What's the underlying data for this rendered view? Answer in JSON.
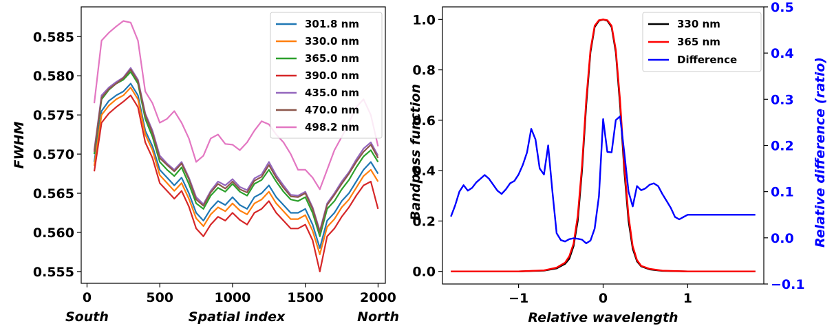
{
  "chart_data": [
    {
      "type": "line",
      "title": "",
      "xlabel": "Spatial index",
      "ylabel": "FWHM",
      "x_end_labels": {
        "left": "South",
        "right": "North"
      },
      "xlim": [
        -40,
        2050
      ],
      "ylim": [
        0.5535,
        0.5888
      ],
      "xticks": [
        0,
        500,
        1000,
        1500,
        2000
      ],
      "yticks": [
        0.555,
        0.56,
        0.565,
        0.57,
        0.575,
        0.58,
        0.585
      ],
      "ytick_labels": [
        "0.555",
        "0.560",
        "0.565",
        "0.570",
        "0.575",
        "0.580",
        "0.585"
      ],
      "legend_position": "top-right",
      "x": [
        50,
        100,
        150,
        200,
        250,
        300,
        350,
        400,
        450,
        500,
        550,
        600,
        650,
        700,
        750,
        800,
        850,
        900,
        950,
        1000,
        1050,
        1100,
        1150,
        1200,
        1250,
        1300,
        1350,
        1400,
        1450,
        1500,
        1550,
        1600,
        1650,
        1700,
        1750,
        1800,
        1850,
        1900,
        1950,
        2000
      ],
      "series": [
        {
          "name": "301.8 nm",
          "color": "#1f77b4",
          "values": [
            0.569,
            0.5755,
            0.5768,
            0.5775,
            0.578,
            0.579,
            0.5775,
            0.573,
            0.571,
            0.568,
            0.567,
            0.566,
            0.567,
            0.565,
            0.5625,
            0.5615,
            0.563,
            0.564,
            0.5635,
            0.5645,
            0.5635,
            0.563,
            0.5645,
            0.565,
            0.566,
            0.5645,
            0.5635,
            0.5625,
            0.5625,
            0.563,
            0.561,
            0.558,
            0.5615,
            0.5625,
            0.564,
            0.565,
            0.5665,
            0.568,
            0.569,
            0.5675
          ]
        },
        {
          "name": "330.0 nm",
          "color": "#ff7f0e",
          "values": [
            0.5685,
            0.575,
            0.5762,
            0.577,
            0.5775,
            0.5785,
            0.577,
            0.5725,
            0.5705,
            0.5673,
            0.5663,
            0.5653,
            0.5663,
            0.5643,
            0.5618,
            0.5608,
            0.5623,
            0.5632,
            0.5627,
            0.5637,
            0.5628,
            0.5623,
            0.5637,
            0.5642,
            0.5652,
            0.5637,
            0.5627,
            0.5617,
            0.5617,
            0.5622,
            0.5602,
            0.5572,
            0.5607,
            0.5617,
            0.5632,
            0.5642,
            0.5657,
            0.5672,
            0.568,
            0.5665
          ]
        },
        {
          "name": "365.0 nm",
          "color": "#2ca02c",
          "values": [
            0.57,
            0.577,
            0.5782,
            0.579,
            0.5795,
            0.5805,
            0.579,
            0.5745,
            0.5722,
            0.569,
            0.568,
            0.5672,
            0.5683,
            0.5662,
            0.5637,
            0.563,
            0.5647,
            0.5657,
            0.5652,
            0.5662,
            0.5652,
            0.5647,
            0.5662,
            0.5667,
            0.568,
            0.5665,
            0.5652,
            0.5642,
            0.564,
            0.5645,
            0.5625,
            0.5595,
            0.563,
            0.564,
            0.5655,
            0.5667,
            0.5683,
            0.5697,
            0.5705,
            0.569
          ]
        },
        {
          "name": "390.0 nm",
          "color": "#d62728",
          "values": [
            0.5678,
            0.574,
            0.5752,
            0.576,
            0.5767,
            0.5775,
            0.576,
            0.5715,
            0.5695,
            0.5663,
            0.5653,
            0.5643,
            0.5653,
            0.5633,
            0.5605,
            0.5595,
            0.561,
            0.562,
            0.5615,
            0.5625,
            0.5616,
            0.561,
            0.5625,
            0.563,
            0.564,
            0.5625,
            0.5615,
            0.5605,
            0.5605,
            0.561,
            0.559,
            0.555,
            0.5595,
            0.5605,
            0.562,
            0.5632,
            0.5647,
            0.566,
            0.5665,
            0.563
          ]
        },
        {
          "name": "435.0 nm",
          "color": "#9467bd",
          "values": [
            0.5705,
            0.5775,
            0.5785,
            0.5792,
            0.5798,
            0.581,
            0.5795,
            0.5752,
            0.573,
            0.5698,
            0.5688,
            0.568,
            0.569,
            0.567,
            0.5645,
            0.5636,
            0.5653,
            0.5665,
            0.566,
            0.5668,
            0.5658,
            0.5654,
            0.5669,
            0.5674,
            0.569,
            0.5673,
            0.566,
            0.5648,
            0.5647,
            0.5652,
            0.5632,
            0.5602,
            0.5637,
            0.565,
            0.5665,
            0.5677,
            0.5693,
            0.5707,
            0.5715,
            0.5698
          ]
        },
        {
          "name": "470.0 nm",
          "color": "#8c564b",
          "values": [
            0.5703,
            0.5772,
            0.5783,
            0.579,
            0.5797,
            0.5808,
            0.5793,
            0.575,
            0.5727,
            0.5695,
            0.5686,
            0.5678,
            0.5688,
            0.5668,
            0.5642,
            0.5634,
            0.5651,
            0.5662,
            0.5656,
            0.5665,
            0.5655,
            0.5651,
            0.5666,
            0.5671,
            0.5686,
            0.567,
            0.5657,
            0.5646,
            0.5645,
            0.565,
            0.563,
            0.56,
            0.5635,
            0.5648,
            0.5662,
            0.5675,
            0.569,
            0.5703,
            0.5712,
            0.5695
          ]
        },
        {
          "name": "498.2 nm",
          "color": "#e377c2",
          "values": [
            0.5765,
            0.5845,
            0.5855,
            0.5863,
            0.587,
            0.5868,
            0.5845,
            0.578,
            0.5765,
            0.574,
            0.5745,
            0.5755,
            0.574,
            0.572,
            0.569,
            0.5698,
            0.572,
            0.5725,
            0.5713,
            0.5712,
            0.5705,
            0.5715,
            0.573,
            0.5742,
            0.5738,
            0.5725,
            0.5715,
            0.57,
            0.568,
            0.568,
            0.567,
            0.5655,
            0.568,
            0.5705,
            0.5722,
            0.574,
            0.576,
            0.577,
            0.575,
            0.571
          ]
        }
      ]
    },
    {
      "type": "line",
      "title": "",
      "xlabel": "Relative wavelength",
      "ylabel": "Bandpass function",
      "y2label": "Relative difference (ratio)",
      "xlim": [
        -1.9,
        1.9
      ],
      "ylim": [
        -0.05,
        1.05
      ],
      "y2lim": [
        -0.1,
        0.5
      ],
      "xticks": [
        -1,
        0,
        1
      ],
      "xtick_labels": [
        "−1",
        "0",
        "1"
      ],
      "yticks": [
        0.0,
        0.2,
        0.4,
        0.6,
        0.8,
        1.0
      ],
      "ytick_labels": [
        "0.0",
        "0.2",
        "0.4",
        "0.6",
        "0.8",
        "1.0"
      ],
      "y2ticks": [
        -0.1,
        0.0,
        0.1,
        0.2,
        0.3,
        0.4,
        0.5
      ],
      "y2tick_labels": [
        "−0.1",
        "0.0",
        "0.1",
        "0.2",
        "0.3",
        "0.4",
        "0.5"
      ],
      "legend_position": "top-right",
      "series": [
        {
          "name": "330 nm",
          "color": "#000000",
          "axis": "left",
          "x": [
            -1.8,
            -1.0,
            -0.7,
            -0.55,
            -0.45,
            -0.4,
            -0.35,
            -0.3,
            -0.25,
            -0.2,
            -0.15,
            -0.1,
            -0.05,
            0.0,
            0.05,
            0.1,
            0.15,
            0.2,
            0.25,
            0.3,
            0.35,
            0.4,
            0.45,
            0.55,
            0.7,
            1.0,
            1.8
          ],
          "values": [
            0.0,
            0.0,
            0.003,
            0.012,
            0.03,
            0.05,
            0.1,
            0.2,
            0.4,
            0.66,
            0.87,
            0.97,
            0.995,
            1.0,
            0.995,
            0.97,
            0.87,
            0.66,
            0.4,
            0.2,
            0.09,
            0.04,
            0.02,
            0.008,
            0.002,
            0.0,
            0.0
          ]
        },
        {
          "name": "365 nm",
          "color": "#ff0000",
          "axis": "left",
          "x": [
            -1.8,
            -1.0,
            -0.7,
            -0.55,
            -0.45,
            -0.4,
            -0.35,
            -0.3,
            -0.25,
            -0.2,
            -0.15,
            -0.1,
            -0.05,
            0.0,
            0.05,
            0.1,
            0.15,
            0.2,
            0.25,
            0.3,
            0.35,
            0.4,
            0.45,
            0.55,
            0.7,
            1.0,
            1.8
          ],
          "values": [
            0.0,
            0.0,
            0.004,
            0.015,
            0.035,
            0.06,
            0.11,
            0.22,
            0.42,
            0.68,
            0.88,
            0.975,
            0.997,
            1.0,
            0.997,
            0.975,
            0.88,
            0.68,
            0.42,
            0.22,
            0.1,
            0.045,
            0.022,
            0.01,
            0.003,
            0.0,
            0.0
          ]
        },
        {
          "name": "Difference",
          "color": "#0000ff",
          "axis": "right",
          "x": [
            -1.8,
            -1.75,
            -1.7,
            -1.65,
            -1.6,
            -1.55,
            -1.5,
            -1.45,
            -1.4,
            -1.35,
            -1.3,
            -1.25,
            -1.2,
            -1.15,
            -1.1,
            -1.05,
            -1.0,
            -0.95,
            -0.9,
            -0.85,
            -0.8,
            -0.75,
            -0.7,
            -0.65,
            -0.6,
            -0.55,
            -0.5,
            -0.45,
            -0.4,
            -0.35,
            -0.3,
            -0.25,
            -0.2,
            -0.15,
            -0.1,
            -0.05,
            0.0,
            0.05,
            0.1,
            0.15,
            0.2,
            0.25,
            0.3,
            0.35,
            0.4,
            0.45,
            0.5,
            0.55,
            0.6,
            0.65,
            0.7,
            0.75,
            0.8,
            0.85,
            0.9,
            0.95,
            1.0,
            1.05,
            1.1,
            1.15,
            1.2,
            1.25,
            1.3,
            1.35,
            1.4,
            1.45,
            1.5,
            1.55,
            1.6,
            1.65,
            1.7,
            1.75,
            1.8
          ],
          "values": [
            0.046,
            0.07,
            0.1,
            0.114,
            0.102,
            0.108,
            0.12,
            0.128,
            0.136,
            0.128,
            0.115,
            0.102,
            0.095,
            0.105,
            0.118,
            0.123,
            0.137,
            0.158,
            0.185,
            0.236,
            0.213,
            0.15,
            0.137,
            0.2,
            0.1,
            0.01,
            -0.005,
            -0.008,
            -0.003,
            -0.001,
            -0.002,
            -0.004,
            -0.012,
            -0.006,
            0.02,
            0.09,
            0.257,
            0.186,
            0.185,
            0.255,
            0.263,
            0.185,
            0.1,
            0.068,
            0.112,
            0.103,
            0.107,
            0.115,
            0.118,
            0.112,
            0.095,
            0.08,
            0.065,
            0.045,
            0.04,
            0.045,
            0.05,
            0.05,
            0.05,
            0.05,
            0.05,
            0.05,
            0.05,
            0.05,
            0.05,
            0.05,
            0.05,
            0.05,
            0.05,
            0.05,
            0.05,
            0.05,
            0.05
          ]
        }
      ]
    }
  ]
}
